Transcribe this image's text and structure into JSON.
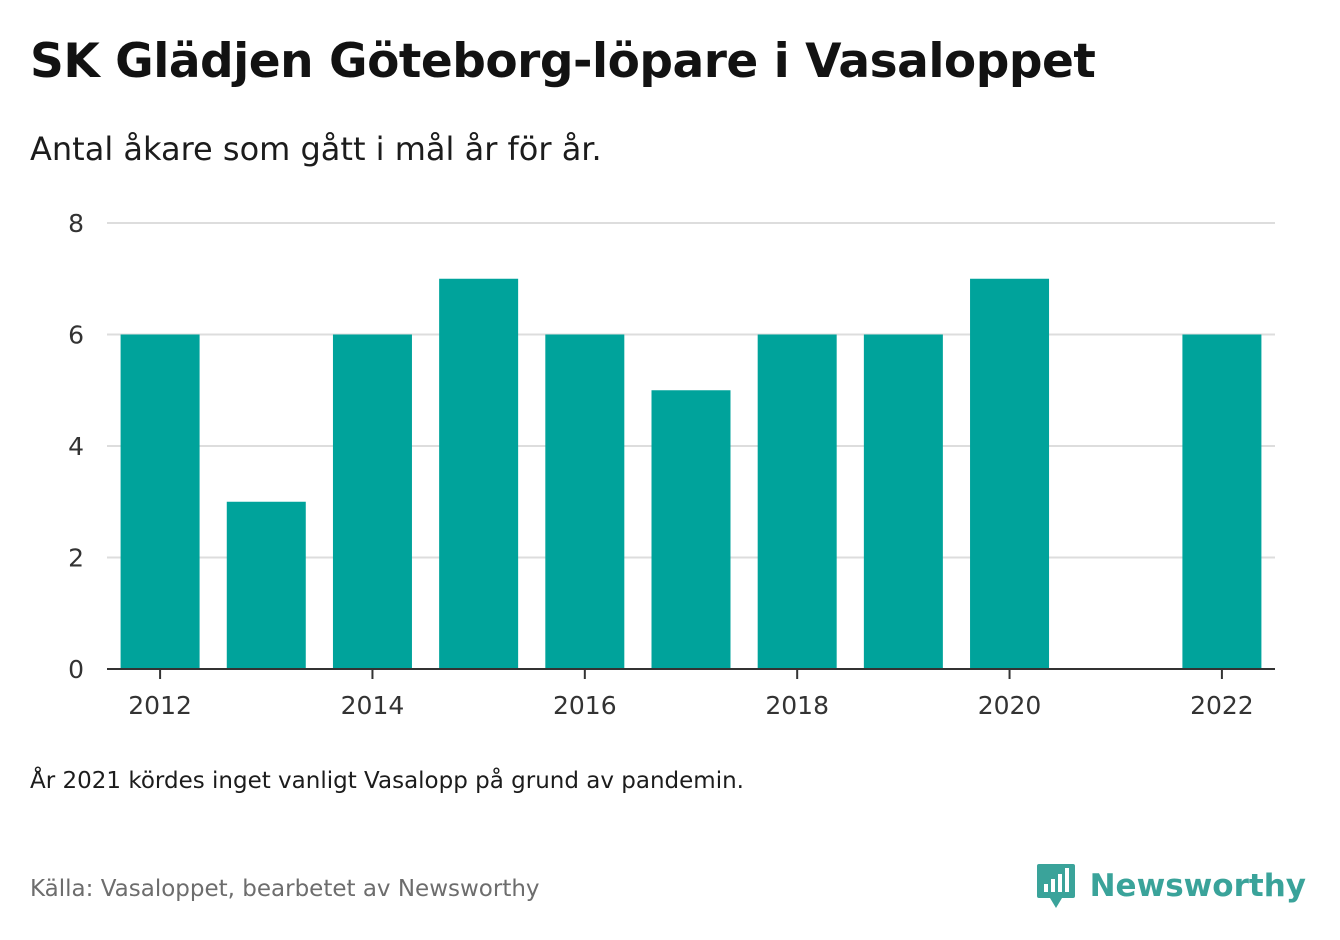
{
  "title": "SK Glädjen Göteborg-löpare i Vasaloppet",
  "subtitle": "Antal åkare som gått i mål år för år.",
  "note": "År 2021 kördes inget vanligt Vasalopp på grund av pandemin.",
  "source": "Källa: Vasaloppet, bearbetet av Newsworthy",
  "brand": {
    "name": "Newsworthy",
    "icon": "newsworthy-logo-icon",
    "color": "#3aa39a"
  },
  "colors": {
    "bar": "#00a39b",
    "grid": "#dddddd",
    "axis": "#333333"
  },
  "chart_data": {
    "type": "bar",
    "title": "SK Glädjen Göteborg-löpare i Vasaloppet",
    "subtitle": "Antal åkare som gått i mål år för år.",
    "xlabel": "",
    "ylabel": "",
    "x": [
      2012,
      2013,
      2014,
      2015,
      2016,
      2017,
      2018,
      2019,
      2020,
      2022
    ],
    "values": [
      6,
      3,
      6,
      7,
      6,
      5,
      6,
      6,
      7,
      6
    ],
    "xlim": [
      2011.5,
      2022.5
    ],
    "ylim": [
      0,
      8
    ],
    "yticks": [
      0,
      2,
      4,
      6,
      8
    ],
    "xticks": [
      2012,
      2014,
      2016,
      2018,
      2020,
      2022
    ],
    "grid": true,
    "legend": "none"
  }
}
